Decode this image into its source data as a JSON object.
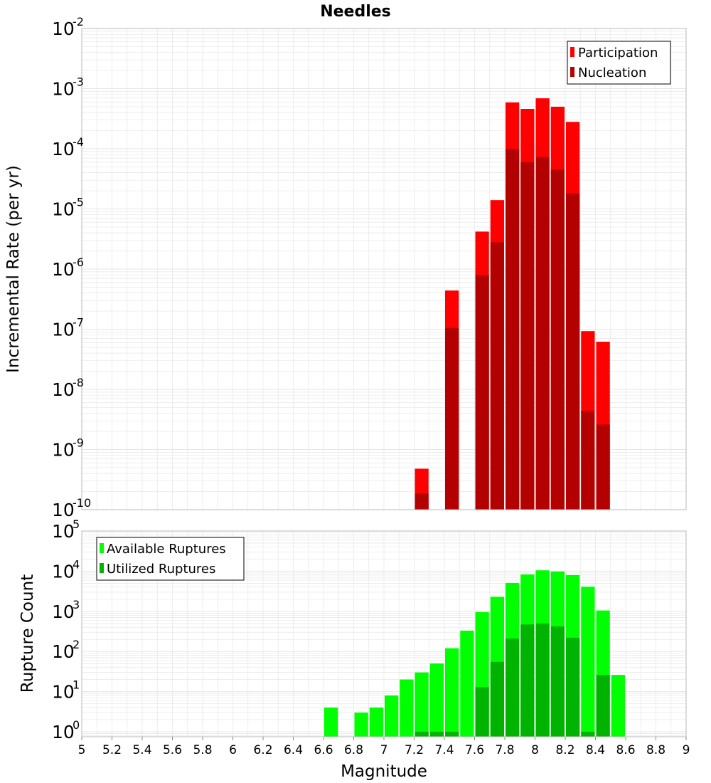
{
  "title": "Needles",
  "xlabel": "Magnitude",
  "colors": {
    "participation": "#ff0000",
    "nucleation": "#b30000",
    "available": "#00ff00",
    "utilized": "#00b300",
    "grid": "#e6e6e6",
    "frame": "#b8b8b8"
  },
  "chart_data": [
    {
      "type": "bar",
      "title": "Needles",
      "ylabel": "Incremental Rate (per yr)",
      "yscale": "log",
      "ylim": [
        1e-10,
        0.01
      ],
      "xlim": [
        5,
        9
      ],
      "legend_position": "top-right",
      "y_tick_bases": [
        "10",
        "10",
        "10",
        "10",
        "10",
        "10",
        "10",
        "10",
        "10"
      ],
      "y_tick_exps": [
        "-10",
        "-9",
        "-8",
        "-7",
        "-6",
        "-5",
        "-4",
        "-3",
        "-2"
      ],
      "series": [
        {
          "name": "Participation",
          "x": [
            7.25,
            7.45,
            7.65,
            7.75,
            7.85,
            7.95,
            8.05,
            8.15,
            8.25,
            8.35,
            8.45
          ],
          "values": [
            4.8e-10,
            4.4e-07,
            4.2e-06,
            1.4e-05,
            0.00059,
            0.00046,
            0.00069,
            0.0005,
            0.00028,
            9.3e-08,
            6.2e-08
          ]
        },
        {
          "name": "Nucleation",
          "x": [
            7.25,
            7.45,
            7.65,
            7.75,
            7.85,
            7.95,
            8.05,
            8.15,
            8.25,
            8.35,
            8.45
          ],
          "values": [
            1.85e-10,
            1.05e-07,
            8e-07,
            2.8e-06,
            0.0001,
            6e-05,
            7.3e-05,
            4.5e-05,
            1.8e-05,
            4.4e-09,
            2.6e-09
          ]
        }
      ]
    },
    {
      "type": "bar",
      "ylabel": "Rupture Count",
      "xlabel": "Magnitude",
      "yscale": "log",
      "ylim": [
        0.75,
        100000
      ],
      "xlim": [
        5,
        9
      ],
      "legend_position": "top-left",
      "y_tick_values": [
        1,
        10,
        100,
        1000,
        10000,
        100000
      ],
      "y_tick_bases": [
        "10",
        "10",
        "10",
        "10",
        "10",
        "10"
      ],
      "y_tick_exps": [
        "0",
        "1",
        "2",
        "3",
        "4",
        "5"
      ],
      "x_ticks": [
        "5",
        "5.2",
        "5.4",
        "5.6",
        "5.8",
        "6",
        "6.2",
        "6.4",
        "6.6",
        "6.8",
        "7",
        "7.2",
        "7.4",
        "7.6",
        "7.8",
        "8",
        "8.2",
        "8.4",
        "8.6",
        "8.8",
        "9"
      ],
      "series": [
        {
          "name": "Available Ruptures",
          "x": [
            6.65,
            6.85,
            6.95,
            7.05,
            7.15,
            7.25,
            7.35,
            7.45,
            7.55,
            7.65,
            7.75,
            7.85,
            7.95,
            8.05,
            8.15,
            8.25,
            8.35,
            8.45,
            8.55
          ],
          "values": [
            4,
            3,
            4,
            8,
            20,
            30,
            50,
            120,
            330,
            950,
            2300,
            5100,
            8300,
            10500,
            9800,
            8000,
            4100,
            1050,
            26
          ]
        },
        {
          "name": "Utilized Ruptures",
          "x": [
            7.25,
            7.35,
            7.45,
            7.65,
            7.75,
            7.85,
            7.95,
            8.05,
            8.15,
            8.25,
            8.35,
            8.45
          ],
          "values": [
            1,
            1,
            1,
            13,
            55,
            210,
            470,
            500,
            420,
            220,
            1,
            26
          ]
        }
      ]
    }
  ]
}
